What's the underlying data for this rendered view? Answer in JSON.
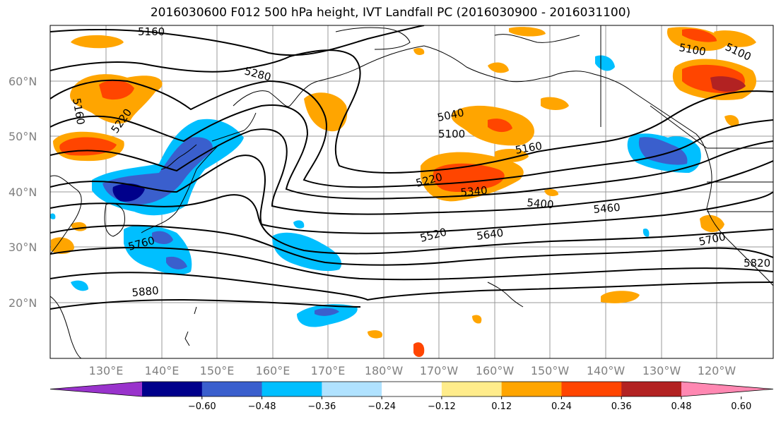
{
  "title": "2016030600 F012 500 hPa height, IVT Landfall PC (2016030900 - 2016031100)",
  "map": {
    "lat_labels": [
      "60°N",
      "50°N",
      "40°N",
      "30°N",
      "20°N"
    ],
    "lon_labels": [
      "130°E",
      "140°E",
      "150°E",
      "160°E",
      "170°E",
      "180°W",
      "170°W",
      "160°W",
      "150°W",
      "140°W",
      "130°W",
      "120°W"
    ],
    "contour_labels": [
      "5160",
      "5280",
      "5160",
      "5220",
      "5040",
      "5100",
      "5160",
      "5100",
      "5100",
      "5220",
      "5340",
      "5400",
      "5460",
      "5880",
      "5760",
      "5520",
      "5640",
      "5700",
      "5820"
    ]
  },
  "colorbar": {
    "ticks": [
      "−0.60",
      "−0.48",
      "−0.36",
      "−0.24",
      "−0.12",
      "0.12",
      "0.24",
      "0.36",
      "0.48",
      "0.60"
    ],
    "colors": [
      "#9933cc",
      "#00008b",
      "#3a5fcd",
      "#00bfff",
      "#b0e2ff",
      "#ffffff",
      "#ffec8b",
      "#ffa500",
      "#ff4500",
      "#b22222",
      "#ff88b2"
    ]
  }
}
